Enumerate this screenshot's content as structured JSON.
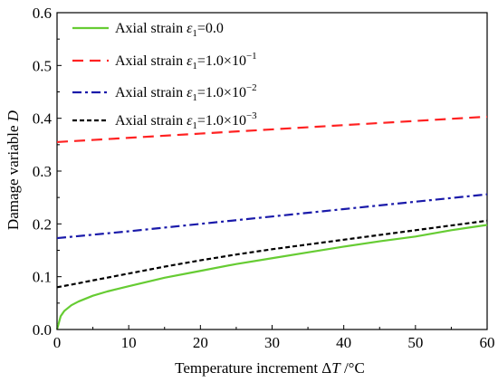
{
  "chart_data": {
    "type": "line",
    "xlabel": "Temperature increment ΔT /°C",
    "ylabel": "Damage variable D",
    "xlim": [
      0,
      60
    ],
    "ylim": [
      0,
      0.6
    ],
    "xticks": [
      "0",
      "10",
      "20",
      "30",
      "40",
      "50",
      "60"
    ],
    "yticks": [
      "0.0",
      "0.1",
      "0.2",
      "0.3",
      "0.4",
      "0.5",
      "0.6"
    ],
    "grid": false,
    "legend_position": "top-left",
    "series": [
      {
        "name": "Axial strain ε1=0.0",
        "color": "#66cc33",
        "dash": "solid",
        "x": [
          0,
          0.5,
          1,
          2,
          3,
          5,
          7,
          10,
          15,
          20,
          25,
          30,
          35,
          40,
          45,
          50,
          55,
          60
        ],
        "y": [
          0.0,
          0.025,
          0.035,
          0.046,
          0.053,
          0.064,
          0.072,
          0.082,
          0.098,
          0.111,
          0.124,
          0.135,
          0.146,
          0.157,
          0.167,
          0.176,
          0.188,
          0.198
        ]
      },
      {
        "name": "Axial strain ε1=1.0×10−1",
        "color": "#ff2222",
        "dash": "long-dash",
        "x": [
          0,
          10,
          20,
          30,
          40,
          50,
          60
        ],
        "y": [
          0.355,
          0.363,
          0.371,
          0.379,
          0.387,
          0.395,
          0.403
        ]
      },
      {
        "name": "Axial strain ε1=1.0×10−2",
        "color": "#1a1aaa",
        "dash": "dash-dot",
        "x": [
          0,
          10,
          20,
          30,
          40,
          50,
          60
        ],
        "y": [
          0.173,
          0.186,
          0.2,
          0.214,
          0.228,
          0.242,
          0.256
        ]
      },
      {
        "name": "Axial strain ε1=1.0×10−3",
        "color": "#000000",
        "dash": "short-dash",
        "x": [
          0,
          2,
          5,
          10,
          15,
          20,
          25,
          30,
          35,
          40,
          45,
          50,
          55,
          60
        ],
        "y": [
          0.08,
          0.085,
          0.093,
          0.106,
          0.119,
          0.131,
          0.142,
          0.152,
          0.161,
          0.17,
          0.179,
          0.188,
          0.197,
          0.206
        ]
      }
    ]
  },
  "legend": [
    {
      "prefix": "Axial strain ",
      "var": "ε",
      "sub": "1",
      "value": "=0.0",
      "sup": ""
    },
    {
      "prefix": "Axial strain ",
      "var": "ε",
      "sub": "1",
      "value": "=1.0×10",
      "sup": "−1"
    },
    {
      "prefix": "Axial strain ",
      "var": "ε",
      "sub": "1",
      "value": "=1.0×10",
      "sup": "−2"
    },
    {
      "prefix": "Axial strain ",
      "var": "ε",
      "sub": "1",
      "value": "=1.0×10",
      "sup": "−3"
    }
  ],
  "axis_titles": {
    "x_prefix": "Temperature increment Δ",
    "x_var": "T",
    "x_suffix": " /°C",
    "y_prefix": "Damage variable ",
    "y_var": "D"
  }
}
